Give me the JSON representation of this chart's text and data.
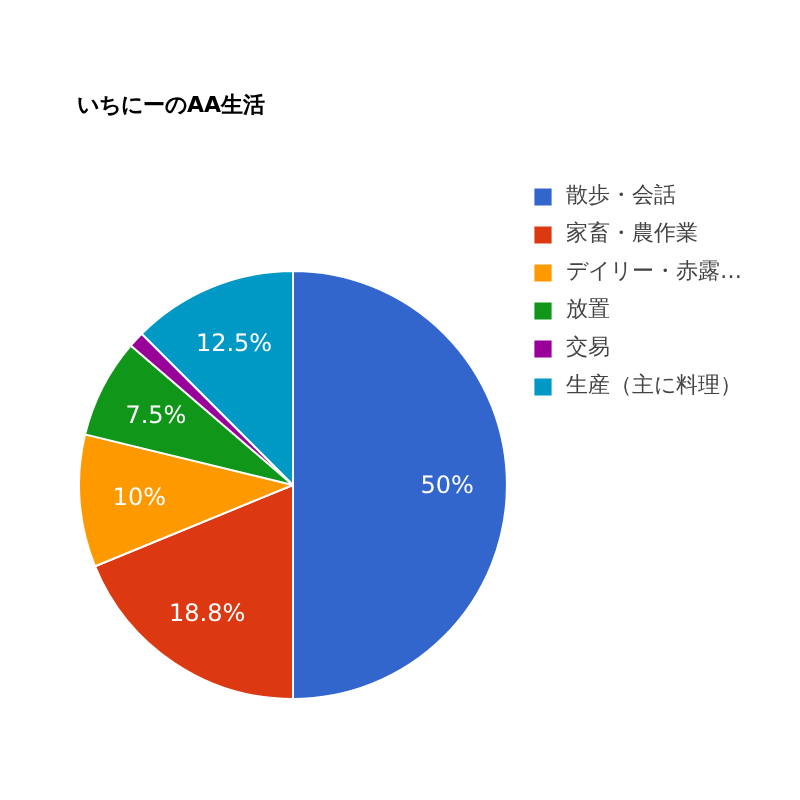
{
  "chart_data": {
    "type": "pie",
    "title": "いちにーのAA生活",
    "categories": [
      "散歩・会話",
      "家畜・農作業",
      "デイリー・赤露…",
      "放置",
      "交易",
      "生産（主に料理）"
    ],
    "values": [
      50,
      18.8,
      10,
      7.5,
      1.2,
      12.5
    ],
    "colors": [
      "#3366cc",
      "#dc3912",
      "#ff9900",
      "#109618",
      "#990099",
      "#0099c6"
    ],
    "value_labels": [
      "50%",
      "18.8%",
      "10%",
      "7.5%",
      null,
      "12.5%"
    ],
    "legend": "right"
  }
}
